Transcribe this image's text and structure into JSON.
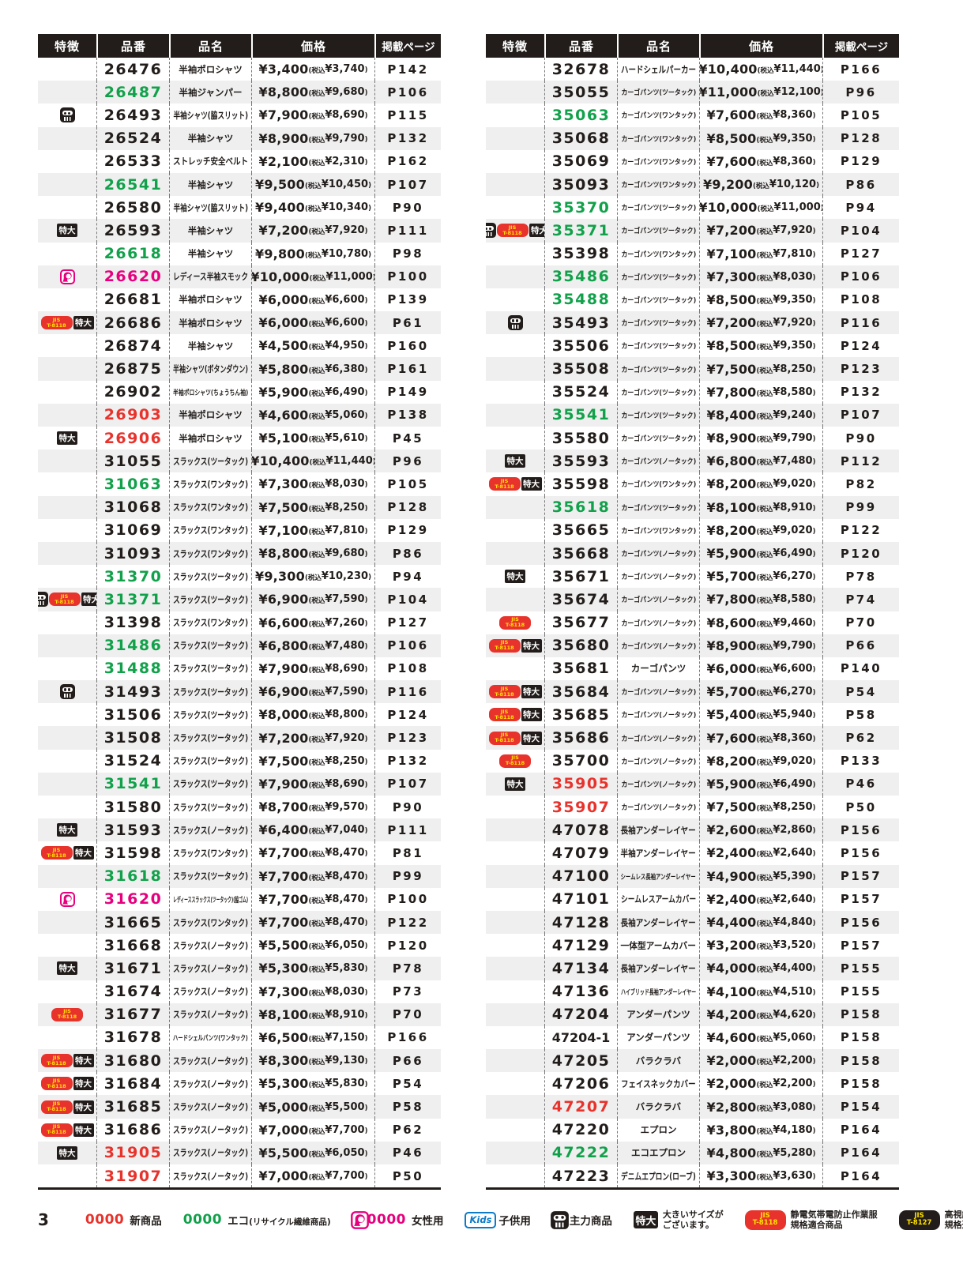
{
  "page": {
    "number": "3"
  },
  "table": {
    "headers": [
      "特徴",
      "品番",
      "品名",
      "価格",
      "掲載ページ"
    ]
  },
  "labels": {
    "yen": "¥",
    "tax_prefix": "(税込",
    "tax_suffix": ")"
  },
  "badges": {
    "xl": "特大",
    "jis_top": "JIS",
    "jis8118": "T-8118",
    "jis8127": "T-8127",
    "kids": "Kids"
  },
  "colors": {
    "header_bg": "#221d1b",
    "row_alt": "#efefef",
    "new_red": "#e7332c",
    "eco_green": "#12a14b",
    "women_pink": "#e6007e",
    "kids_blue": "#0b7bc7",
    "jis_yellow": "#ffe100"
  },
  "left_table": {
    "rows": [
      {
        "f": [],
        "c": "26476",
        "k": "k",
        "n": "半袖ポロシャツ",
        "p": "3,400",
        "t": "3,740",
        "g": "P142"
      },
      {
        "f": [],
        "c": "26487",
        "k": "g",
        "n": "半袖ジャンパー",
        "p": "8,800",
        "t": "9,680",
        "g": "P106"
      },
      {
        "f": [
          "main"
        ],
        "c": "26493",
        "k": "k",
        "n": "半袖シャツ(脇スリット)",
        "p": "7,900",
        "t": "8,690",
        "g": "P115"
      },
      {
        "f": [],
        "c": "26524",
        "k": "k",
        "n": "半袖シャツ",
        "p": "8,900",
        "t": "9,790",
        "g": "P132"
      },
      {
        "f": [],
        "c": "26533",
        "k": "k",
        "n": "ストレッチ安全ベルト",
        "p": "2,100",
        "t": "2,310",
        "g": "P162"
      },
      {
        "f": [],
        "c": "26541",
        "k": "g",
        "n": "半袖シャツ",
        "p": "9,500",
        "t": "10,450",
        "g": "P107"
      },
      {
        "f": [],
        "c": "26580",
        "k": "k",
        "n": "半袖シャツ(脇スリット)",
        "p": "9,400",
        "t": "10,340",
        "g": "P90"
      },
      {
        "f": [
          "xl"
        ],
        "c": "26593",
        "k": "k",
        "n": "半袖シャツ",
        "p": "7,200",
        "t": "7,920",
        "g": "P111"
      },
      {
        "f": [],
        "c": "26618",
        "k": "g",
        "n": "半袖シャツ",
        "p": "9,800",
        "t": "10,780",
        "g": "P98"
      },
      {
        "f": [
          "women"
        ],
        "c": "26620",
        "k": "p",
        "n": "レディース半袖スモック",
        "p": "10,000",
        "t": "11,000",
        "g": "P100"
      },
      {
        "f": [],
        "c": "26681",
        "k": "k",
        "n": "半袖ポロシャツ",
        "p": "6,000",
        "t": "6,600",
        "g": "P139"
      },
      {
        "f": [
          "jis8118",
          "xl"
        ],
        "c": "26686",
        "k": "k",
        "n": "半袖ポロシャツ",
        "p": "6,000",
        "t": "6,600",
        "g": "P61"
      },
      {
        "f": [],
        "c": "26874",
        "k": "k",
        "n": "半袖シャツ",
        "p": "4,500",
        "t": "4,950",
        "g": "P160"
      },
      {
        "f": [],
        "c": "26875",
        "k": "k",
        "n": "半袖シャツ(ボタンダウン)",
        "p": "5,800",
        "t": "6,380",
        "g": "P161"
      },
      {
        "f": [],
        "c": "26902",
        "k": "k",
        "n": "半袖ポロシャツ(ちょうちん袖)",
        "p": "5,900",
        "t": "6,490",
        "g": "P149"
      },
      {
        "f": [],
        "c": "26903",
        "k": "r",
        "n": "半袖ポロシャツ",
        "p": "4,600",
        "t": "5,060",
        "g": "P138"
      },
      {
        "f": [
          "xl"
        ],
        "c": "26906",
        "k": "r",
        "n": "半袖ポロシャツ",
        "p": "5,100",
        "t": "5,610",
        "g": "P45"
      },
      {
        "f": [],
        "c": "31055",
        "k": "k",
        "n": "スラックス(ツータック)",
        "p": "10,400",
        "t": "11,440",
        "g": "P96"
      },
      {
        "f": [],
        "c": "31063",
        "k": "g",
        "n": "スラックス(ワンタック)",
        "p": "7,300",
        "t": "8,030",
        "g": "P105"
      },
      {
        "f": [],
        "c": "31068",
        "k": "k",
        "n": "スラックス(ワンタック)",
        "p": "7,500",
        "t": "8,250",
        "g": "P128"
      },
      {
        "f": [],
        "c": "31069",
        "k": "k",
        "n": "スラックス(ワンタック)",
        "p": "7,100",
        "t": "7,810",
        "g": "P129"
      },
      {
        "f": [],
        "c": "31093",
        "k": "k",
        "n": "スラックス(ワンタック)",
        "p": "8,800",
        "t": "9,680",
        "g": "P86"
      },
      {
        "f": [],
        "c": "31370",
        "k": "g",
        "n": "スラックス(ツータック)",
        "p": "9,300",
        "t": "10,230",
        "g": "P94"
      },
      {
        "f": [
          "main",
          "jis8118",
          "xl"
        ],
        "c": "31371",
        "k": "g",
        "n": "スラックス(ツータック)",
        "p": "6,900",
        "t": "7,590",
        "g": "P104"
      },
      {
        "f": [],
        "c": "31398",
        "k": "k",
        "n": "スラックス(ワンタック)",
        "p": "6,600",
        "t": "7,260",
        "g": "P127"
      },
      {
        "f": [],
        "c": "31486",
        "k": "g",
        "n": "スラックス(ツータック)",
        "p": "6,800",
        "t": "7,480",
        "g": "P106"
      },
      {
        "f": [],
        "c": "31488",
        "k": "g",
        "n": "スラックス(ツータック)",
        "p": "7,900",
        "t": "8,690",
        "g": "P108"
      },
      {
        "f": [
          "main"
        ],
        "c": "31493",
        "k": "k",
        "n": "スラックス(ツータック)",
        "p": "6,900",
        "t": "7,590",
        "g": "P116"
      },
      {
        "f": [],
        "c": "31506",
        "k": "k",
        "n": "スラックス(ツータック)",
        "p": "8,000",
        "t": "8,800",
        "g": "P124"
      },
      {
        "f": [],
        "c": "31508",
        "k": "k",
        "n": "スラックス(ツータック)",
        "p": "7,200",
        "t": "7,920",
        "g": "P123"
      },
      {
        "f": [],
        "c": "31524",
        "k": "k",
        "n": "スラックス(ツータック)",
        "p": "7,500",
        "t": "8,250",
        "g": "P132"
      },
      {
        "f": [],
        "c": "31541",
        "k": "g",
        "n": "スラックス(ツータック)",
        "p": "7,900",
        "t": "8,690",
        "g": "P107"
      },
      {
        "f": [],
        "c": "31580",
        "k": "k",
        "n": "スラックス(ツータック)",
        "p": "8,700",
        "t": "9,570",
        "g": "P90"
      },
      {
        "f": [
          "xl"
        ],
        "c": "31593",
        "k": "k",
        "n": "スラックス(ノータック)",
        "p": "6,400",
        "t": "7,040",
        "g": "P111"
      },
      {
        "f": [
          "jis8118",
          "xl"
        ],
        "c": "31598",
        "k": "k",
        "n": "スラックス(ワンタック)",
        "p": "7,700",
        "t": "8,470",
        "g": "P81"
      },
      {
        "f": [],
        "c": "31618",
        "k": "g",
        "n": "スラックス(ツータック)",
        "p": "7,700",
        "t": "8,470",
        "g": "P99"
      },
      {
        "f": [
          "women"
        ],
        "c": "31620",
        "k": "p",
        "n": "レディーススラックス(ツータック)(脇ゴム)",
        "p": "7,700",
        "t": "8,470",
        "g": "P100"
      },
      {
        "f": [],
        "c": "31665",
        "k": "k",
        "n": "スラックス(ワンタック)",
        "p": "7,700",
        "t": "8,470",
        "g": "P122"
      },
      {
        "f": [],
        "c": "31668",
        "k": "k",
        "n": "スラックス(ノータック)",
        "p": "5,500",
        "t": "6,050",
        "g": "P120"
      },
      {
        "f": [
          "xl"
        ],
        "c": "31671",
        "k": "k",
        "n": "スラックス(ノータック)",
        "p": "5,300",
        "t": "5,830",
        "g": "P78"
      },
      {
        "f": [],
        "c": "31674",
        "k": "k",
        "n": "スラックス(ノータック)",
        "p": "7,300",
        "t": "8,030",
        "g": "P73"
      },
      {
        "f": [
          "jis8118"
        ],
        "c": "31677",
        "k": "k",
        "n": "スラックス(ノータック)",
        "p": "8,100",
        "t": "8,910",
        "g": "P70"
      },
      {
        "f": [],
        "c": "31678",
        "k": "k",
        "n": "ハードシェルパンツ(ワンタック)",
        "p": "6,500",
        "t": "7,150",
        "g": "P166"
      },
      {
        "f": [
          "jis8118",
          "xl"
        ],
        "c": "31680",
        "k": "k",
        "n": "スラックス(ノータック)",
        "p": "8,300",
        "t": "9,130",
        "g": "P66"
      },
      {
        "f": [
          "jis8118",
          "xl"
        ],
        "c": "31684",
        "k": "k",
        "n": "スラックス(ノータック)",
        "p": "5,300",
        "t": "5,830",
        "g": "P54"
      },
      {
        "f": [
          "jis8118",
          "xl"
        ],
        "c": "31685",
        "k": "k",
        "n": "スラックス(ノータック)",
        "p": "5,000",
        "t": "5,500",
        "g": "P58"
      },
      {
        "f": [
          "jis8118",
          "xl"
        ],
        "c": "31686",
        "k": "k",
        "n": "スラックス(ノータック)",
        "p": "7,000",
        "t": "7,700",
        "g": "P62"
      },
      {
        "f": [
          "xl"
        ],
        "c": "31905",
        "k": "r",
        "n": "スラックス(ノータック)",
        "p": "5,500",
        "t": "6,050",
        "g": "P46"
      },
      {
        "f": [],
        "c": "31907",
        "k": "r",
        "n": "スラックス(ノータック)",
        "p": "7,000",
        "t": "7,700",
        "g": "P50"
      }
    ]
  },
  "right_table": {
    "rows": [
      {
        "f": [],
        "c": "32678",
        "k": "k",
        "n": "ハードシェルパーカー",
        "p": "10,400",
        "t": "11,440",
        "g": "P166"
      },
      {
        "f": [],
        "c": "35055",
        "k": "k",
        "n": "カーゴパンツ(ツータック)",
        "p": "11,000",
        "t": "12,100",
        "g": "P96"
      },
      {
        "f": [],
        "c": "35063",
        "k": "g",
        "n": "カーゴパンツ(ワンタック)",
        "p": "7,600",
        "t": "8,360",
        "g": "P105"
      },
      {
        "f": [],
        "c": "35068",
        "k": "k",
        "n": "カーゴパンツ(ワンタック)",
        "p": "8,500",
        "t": "9,350",
        "g": "P128"
      },
      {
        "f": [],
        "c": "35069",
        "k": "k",
        "n": "カーゴパンツ(ワンタック)",
        "p": "7,600",
        "t": "8,360",
        "g": "P129"
      },
      {
        "f": [],
        "c": "35093",
        "k": "k",
        "n": "カーゴパンツ(ワンタック)",
        "p": "9,200",
        "t": "10,120",
        "g": "P86"
      },
      {
        "f": [],
        "c": "35370",
        "k": "g",
        "n": "カーゴパンツ(ツータック)",
        "p": "10,000",
        "t": "11,000",
        "g": "P94"
      },
      {
        "f": [
          "main",
          "jis8118",
          "xl"
        ],
        "c": "35371",
        "k": "g",
        "n": "カーゴパンツ(ツータック)",
        "p": "7,200",
        "t": "7,920",
        "g": "P104"
      },
      {
        "f": [],
        "c": "35398",
        "k": "k",
        "n": "カーゴパンツ(ワンタック)",
        "p": "7,100",
        "t": "7,810",
        "g": "P127"
      },
      {
        "f": [],
        "c": "35486",
        "k": "g",
        "n": "カーゴパンツ(ツータック)",
        "p": "7,300",
        "t": "8,030",
        "g": "P106"
      },
      {
        "f": [],
        "c": "35488",
        "k": "g",
        "n": "カーゴパンツ(ツータック)",
        "p": "8,500",
        "t": "9,350",
        "g": "P108"
      },
      {
        "f": [
          "main"
        ],
        "c": "35493",
        "k": "k",
        "n": "カーゴパンツ(ツータック)",
        "p": "7,200",
        "t": "7,920",
        "g": "P116"
      },
      {
        "f": [],
        "c": "35506",
        "k": "k",
        "n": "カーゴパンツ(ツータック)",
        "p": "8,500",
        "t": "9,350",
        "g": "P124"
      },
      {
        "f": [],
        "c": "35508",
        "k": "k",
        "n": "カーゴパンツ(ツータック)",
        "p": "7,500",
        "t": "8,250",
        "g": "P123"
      },
      {
        "f": [],
        "c": "35524",
        "k": "k",
        "n": "カーゴパンツ(ツータック)",
        "p": "7,800",
        "t": "8,580",
        "g": "P132"
      },
      {
        "f": [],
        "c": "35541",
        "k": "g",
        "n": "カーゴパンツ(ツータック)",
        "p": "8,400",
        "t": "9,240",
        "g": "P107"
      },
      {
        "f": [],
        "c": "35580",
        "k": "k",
        "n": "カーゴパンツ(ツータック)",
        "p": "8,900",
        "t": "9,790",
        "g": "P90"
      },
      {
        "f": [
          "xl"
        ],
        "c": "35593",
        "k": "k",
        "n": "カーゴパンツ(ノータック)",
        "p": "6,800",
        "t": "7,480",
        "g": "P112"
      },
      {
        "f": [
          "jis8118",
          "xl"
        ],
        "c": "35598",
        "k": "k",
        "n": "カーゴパンツ(ワンタック)",
        "p": "8,200",
        "t": "9,020",
        "g": "P82"
      },
      {
        "f": [],
        "c": "35618",
        "k": "g",
        "n": "カーゴパンツ(ツータック)",
        "p": "8,100",
        "t": "8,910",
        "g": "P99"
      },
      {
        "f": [],
        "c": "35665",
        "k": "k",
        "n": "カーゴパンツ(ワンタック)",
        "p": "8,200",
        "t": "9,020",
        "g": "P122"
      },
      {
        "f": [],
        "c": "35668",
        "k": "k",
        "n": "カーゴパンツ(ノータック)",
        "p": "5,900",
        "t": "6,490",
        "g": "P120"
      },
      {
        "f": [
          "xl"
        ],
        "c": "35671",
        "k": "k",
        "n": "カーゴパンツ(ノータック)",
        "p": "5,700",
        "t": "6,270",
        "g": "P78"
      },
      {
        "f": [],
        "c": "35674",
        "k": "k",
        "n": "カーゴパンツ(ノータック)",
        "p": "7,800",
        "t": "8,580",
        "g": "P74"
      },
      {
        "f": [
          "jis8118"
        ],
        "c": "35677",
        "k": "k",
        "n": "カーゴパンツ(ノータック)",
        "p": "8,600",
        "t": "9,460",
        "g": "P70"
      },
      {
        "f": [
          "jis8118",
          "xl"
        ],
        "c": "35680",
        "k": "k",
        "n": "カーゴパンツ(ノータック)",
        "p": "8,900",
        "t": "9,790",
        "g": "P66"
      },
      {
        "f": [],
        "c": "35681",
        "k": "k",
        "n": "カーゴパンツ",
        "p": "6,000",
        "t": "6,600",
        "g": "P140"
      },
      {
        "f": [
          "jis8118",
          "xl"
        ],
        "c": "35684",
        "k": "k",
        "n": "カーゴパンツ(ノータック)",
        "p": "5,700",
        "t": "6,270",
        "g": "P54"
      },
      {
        "f": [
          "jis8118",
          "xl"
        ],
        "c": "35685",
        "k": "k",
        "n": "カーゴパンツ(ノータック)",
        "p": "5,400",
        "t": "5,940",
        "g": "P58"
      },
      {
        "f": [
          "jis8118",
          "xl"
        ],
        "c": "35686",
        "k": "k",
        "n": "カーゴパンツ(ノータック)",
        "p": "7,600",
        "t": "8,360",
        "g": "P62"
      },
      {
        "f": [
          "jis8118"
        ],
        "c": "35700",
        "k": "k",
        "n": "カーゴパンツ(ノータック)",
        "p": "8,200",
        "t": "9,020",
        "g": "P133"
      },
      {
        "f": [
          "xl"
        ],
        "c": "35905",
        "k": "r",
        "n": "カーゴパンツ(ノータック)",
        "p": "5,900",
        "t": "6,490",
        "g": "P46"
      },
      {
        "f": [],
        "c": "35907",
        "k": "r",
        "n": "カーゴパンツ(ノータック)",
        "p": "7,500",
        "t": "8,250",
        "g": "P50"
      },
      {
        "f": [],
        "c": "47078",
        "k": "k",
        "n": "長袖アンダーレイヤー",
        "p": "2,600",
        "t": "2,860",
        "g": "P156"
      },
      {
        "f": [],
        "c": "47079",
        "k": "k",
        "n": "半袖アンダーレイヤー",
        "p": "2,400",
        "t": "2,640",
        "g": "P156"
      },
      {
        "f": [],
        "c": "47100",
        "k": "k",
        "n": "シームレス長袖アンダーレイヤー",
        "p": "4,900",
        "t": "5,390",
        "g": "P157"
      },
      {
        "f": [],
        "c": "47101",
        "k": "k",
        "n": "シームレスアームカバー",
        "p": "2,400",
        "t": "2,640",
        "g": "P157"
      },
      {
        "f": [],
        "c": "47128",
        "k": "k",
        "n": "長袖アンダーレイヤー",
        "p": "4,400",
        "t": "4,840",
        "g": "P156"
      },
      {
        "f": [],
        "c": "47129",
        "k": "k",
        "n": "一体型アームカバー",
        "p": "3,200",
        "t": "3,520",
        "g": "P157"
      },
      {
        "f": [],
        "c": "47134",
        "k": "k",
        "n": "長袖アンダーレイヤー",
        "p": "4,000",
        "t": "4,400",
        "g": "P155"
      },
      {
        "f": [],
        "c": "47136",
        "k": "k",
        "n": "ハイブリッド長袖アンダーレイヤー",
        "p": "4,100",
        "t": "4,510",
        "g": "P155"
      },
      {
        "f": [],
        "c": "47204",
        "k": "k",
        "n": "アンダーパンツ",
        "p": "4,200",
        "t": "4,620",
        "g": "P158"
      },
      {
        "f": [],
        "c": "47204-1",
        "k": "k",
        "n": "アンダーパンツ",
        "p": "4,600",
        "t": "5,060",
        "g": "P158"
      },
      {
        "f": [],
        "c": "47205",
        "k": "k",
        "n": "バラクラバ",
        "p": "2,000",
        "t": "2,200",
        "g": "P158"
      },
      {
        "f": [],
        "c": "47206",
        "k": "k",
        "n": "フェイスネックカバー",
        "p": "2,000",
        "t": "2,200",
        "g": "P158"
      },
      {
        "f": [],
        "c": "47207",
        "k": "r",
        "n": "バラクラバ",
        "p": "2,800",
        "t": "3,080",
        "g": "P154"
      },
      {
        "f": [],
        "c": "47220",
        "k": "k",
        "n": "エプロン",
        "p": "3,800",
        "t": "4,180",
        "g": "P164"
      },
      {
        "f": [],
        "c": "47222",
        "k": "g",
        "n": "エコエプロン",
        "p": "4,800",
        "t": "5,280",
        "g": "P164"
      },
      {
        "f": [],
        "c": "47223",
        "k": "k",
        "n": "デニムエプロン(ローブ)",
        "p": "3,300",
        "t": "3,630",
        "g": "P164"
      }
    ]
  },
  "legend": {
    "items": [
      {
        "sample": "0000",
        "sample_color": "red",
        "label": "新商品"
      },
      {
        "sample": "0000",
        "sample_color": "green",
        "label": "エコ",
        "sub": "(リサイクル繊維商品)"
      },
      {
        "icon": "women",
        "sample": "0000",
        "sample_color": "pink",
        "label": "女性用"
      },
      {
        "icon": "kids",
        "label": "子供用"
      },
      {
        "icon": "main",
        "label": "主力商品"
      },
      {
        "icon": "xl",
        "lines": [
          "大きいサイズが",
          "ございます。"
        ]
      },
      {
        "icon": "jis8118",
        "lines": [
          "静電気帯電防止作業服",
          "規格適合商品"
        ]
      },
      {
        "icon": "jis8127",
        "lines": [
          "高視認性安全服",
          "規格適合商品"
        ]
      }
    ]
  }
}
